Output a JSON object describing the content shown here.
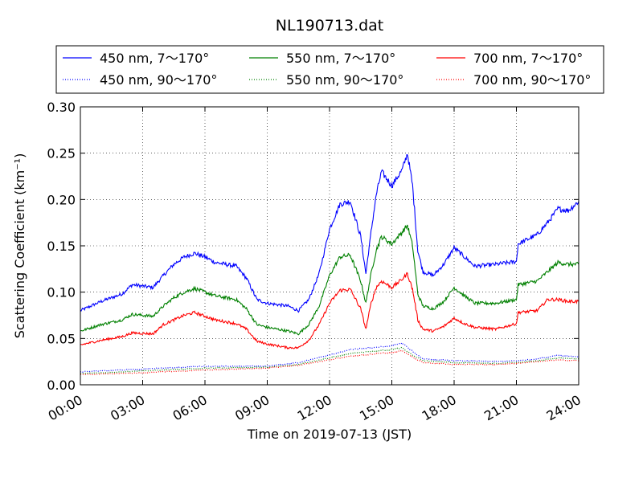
{
  "chart_data": {
    "type": "line",
    "title": "NL190713.dat",
    "xlabel": "Time on 2019-07-13 (JST)",
    "ylabel": "Scattering Coefficient (km⁻¹)",
    "xlim": [
      "00:00",
      "24:00"
    ],
    "ylim": [
      0.0,
      0.3
    ],
    "grid": true,
    "legend_position": "top",
    "x_ticks": [
      "00:00",
      "03:00",
      "06:00",
      "09:00",
      "12:00",
      "15:00",
      "18:00",
      "21:00",
      "24:00"
    ],
    "y_ticks": [
      "0.00",
      "0.05",
      "0.10",
      "0.15",
      "0.20",
      "0.25",
      "0.30"
    ],
    "series": [
      {
        "name": "450 nm, 7～170°",
        "color": "#0000ff",
        "style": "solid",
        "points": [
          [
            "00:00",
            0.08
          ],
          [
            "01:00",
            0.09
          ],
          [
            "02:00",
            0.098
          ],
          [
            "02:30",
            0.108
          ],
          [
            "03:30",
            0.105
          ],
          [
            "04:00",
            0.118
          ],
          [
            "04:30",
            0.13
          ],
          [
            "05:00",
            0.138
          ],
          [
            "05:30",
            0.142
          ],
          [
            "06:00",
            0.138
          ],
          [
            "06:30",
            0.132
          ],
          [
            "07:30",
            0.128
          ],
          [
            "08:00",
            0.115
          ],
          [
            "08:30",
            0.092
          ],
          [
            "09:00",
            0.088
          ],
          [
            "10:00",
            0.085
          ],
          [
            "10:30",
            0.08
          ],
          [
            "11:00",
            0.092
          ],
          [
            "11:30",
            0.12
          ],
          [
            "12:00",
            0.168
          ],
          [
            "12:30",
            0.195
          ],
          [
            "13:00",
            0.198
          ],
          [
            "13:30",
            0.16
          ],
          [
            "13:45",
            0.12
          ],
          [
            "14:00",
            0.165
          ],
          [
            "14:15",
            0.205
          ],
          [
            "14:30",
            0.23
          ],
          [
            "15:00",
            0.215
          ],
          [
            "15:30",
            0.232
          ],
          [
            "15:45",
            0.25
          ],
          [
            "16:00",
            0.215
          ],
          [
            "16:15",
            0.145
          ],
          [
            "16:30",
            0.122
          ],
          [
            "17:00",
            0.118
          ],
          [
            "17:30",
            0.13
          ],
          [
            "18:00",
            0.148
          ],
          [
            "18:30",
            0.138
          ],
          [
            "19:00",
            0.128
          ],
          [
            "20:00",
            0.13
          ],
          [
            "21:00",
            0.133
          ],
          [
            "21:05",
            0.152
          ],
          [
            "22:00",
            0.162
          ],
          [
            "22:30",
            0.175
          ],
          [
            "23:00",
            0.19
          ],
          [
            "23:30",
            0.188
          ],
          [
            "24:00",
            0.198
          ]
        ]
      },
      {
        "name": "550 nm, 7～170°",
        "color": "#008000",
        "style": "solid",
        "points": [
          [
            "00:00",
            0.058
          ],
          [
            "01:00",
            0.065
          ],
          [
            "02:00",
            0.07
          ],
          [
            "02:30",
            0.076
          ],
          [
            "03:30",
            0.074
          ],
          [
            "04:00",
            0.085
          ],
          [
            "04:30",
            0.094
          ],
          [
            "05:00",
            0.1
          ],
          [
            "05:30",
            0.104
          ],
          [
            "06:00",
            0.1
          ],
          [
            "06:30",
            0.096
          ],
          [
            "07:30",
            0.092
          ],
          [
            "08:00",
            0.082
          ],
          [
            "08:30",
            0.065
          ],
          [
            "09:00",
            0.062
          ],
          [
            "10:00",
            0.058
          ],
          [
            "10:30",
            0.055
          ],
          [
            "11:00",
            0.065
          ],
          [
            "11:30",
            0.085
          ],
          [
            "12:00",
            0.118
          ],
          [
            "12:30",
            0.138
          ],
          [
            "13:00",
            0.14
          ],
          [
            "13:30",
            0.112
          ],
          [
            "13:45",
            0.088
          ],
          [
            "14:00",
            0.12
          ],
          [
            "14:15",
            0.145
          ],
          [
            "14:30",
            0.16
          ],
          [
            "15:00",
            0.152
          ],
          [
            "15:30",
            0.165
          ],
          [
            "15:45",
            0.172
          ],
          [
            "16:00",
            0.15
          ],
          [
            "16:15",
            0.098
          ],
          [
            "16:30",
            0.085
          ],
          [
            "17:00",
            0.082
          ],
          [
            "17:30",
            0.09
          ],
          [
            "18:00",
            0.105
          ],
          [
            "18:30",
            0.096
          ],
          [
            "19:00",
            0.088
          ],
          [
            "20:00",
            0.088
          ],
          [
            "21:00",
            0.092
          ],
          [
            "21:05",
            0.108
          ],
          [
            "22:00",
            0.112
          ],
          [
            "22:30",
            0.122
          ],
          [
            "23:00",
            0.132
          ],
          [
            "23:30",
            0.13
          ],
          [
            "24:00",
            0.13
          ]
        ]
      },
      {
        "name": "700 nm, 7～170°",
        "color": "#ff0000",
        "style": "solid",
        "points": [
          [
            "00:00",
            0.043
          ],
          [
            "01:00",
            0.048
          ],
          [
            "02:00",
            0.052
          ],
          [
            "02:30",
            0.056
          ],
          [
            "03:30",
            0.055
          ],
          [
            "04:00",
            0.065
          ],
          [
            "04:30",
            0.07
          ],
          [
            "05:00",
            0.075
          ],
          [
            "05:30",
            0.078
          ],
          [
            "06:00",
            0.074
          ],
          [
            "06:30",
            0.07
          ],
          [
            "07:30",
            0.066
          ],
          [
            "08:00",
            0.06
          ],
          [
            "08:30",
            0.047
          ],
          [
            "09:00",
            0.044
          ],
          [
            "10:00",
            0.04
          ],
          [
            "10:30",
            0.04
          ],
          [
            "11:00",
            0.048
          ],
          [
            "11:30",
            0.065
          ],
          [
            "12:00",
            0.088
          ],
          [
            "12:30",
            0.102
          ],
          [
            "13:00",
            0.103
          ],
          [
            "13:30",
            0.082
          ],
          [
            "13:45",
            0.06
          ],
          [
            "14:00",
            0.088
          ],
          [
            "14:15",
            0.105
          ],
          [
            "14:30",
            0.112
          ],
          [
            "15:00",
            0.105
          ],
          [
            "15:30",
            0.114
          ],
          [
            "15:45",
            0.12
          ],
          [
            "16:00",
            0.103
          ],
          [
            "16:15",
            0.07
          ],
          [
            "16:30",
            0.06
          ],
          [
            "17:00",
            0.058
          ],
          [
            "17:30",
            0.063
          ],
          [
            "18:00",
            0.072
          ],
          [
            "18:30",
            0.066
          ],
          [
            "19:00",
            0.062
          ],
          [
            "20:00",
            0.06
          ],
          [
            "21:00",
            0.066
          ],
          [
            "21:05",
            0.078
          ],
          [
            "22:00",
            0.08
          ],
          [
            "22:30",
            0.092
          ],
          [
            "23:00",
            0.092
          ],
          [
            "23:30",
            0.09
          ],
          [
            "24:00",
            0.09
          ]
        ]
      },
      {
        "name": "450 nm, 90～170°",
        "color": "#0000ff",
        "style": "dotted",
        "points": [
          [
            "00:00",
            0.014
          ],
          [
            "03:00",
            0.017
          ],
          [
            "06:00",
            0.02
          ],
          [
            "09:00",
            0.02
          ],
          [
            "10:30",
            0.024
          ],
          [
            "12:00",
            0.032
          ],
          [
            "13:00",
            0.038
          ],
          [
            "14:00",
            0.04
          ],
          [
            "15:00",
            0.042
          ],
          [
            "15:30",
            0.045
          ],
          [
            "16:00",
            0.036
          ],
          [
            "16:30",
            0.028
          ],
          [
            "18:00",
            0.026
          ],
          [
            "20:00",
            0.025
          ],
          [
            "21:00",
            0.026
          ],
          [
            "22:00",
            0.028
          ],
          [
            "23:00",
            0.032
          ],
          [
            "24:00",
            0.03
          ]
        ]
      },
      {
        "name": "550 nm, 90～170°",
        "color": "#008000",
        "style": "dotted",
        "points": [
          [
            "00:00",
            0.012
          ],
          [
            "03:00",
            0.015
          ],
          [
            "06:00",
            0.018
          ],
          [
            "09:00",
            0.019
          ],
          [
            "10:30",
            0.022
          ],
          [
            "12:00",
            0.029
          ],
          [
            "13:00",
            0.034
          ],
          [
            "14:00",
            0.036
          ],
          [
            "15:00",
            0.038
          ],
          [
            "15:30",
            0.04
          ],
          [
            "16:00",
            0.032
          ],
          [
            "16:30",
            0.026
          ],
          [
            "18:00",
            0.024
          ],
          [
            "20:00",
            0.023
          ],
          [
            "21:00",
            0.024
          ],
          [
            "22:00",
            0.026
          ],
          [
            "23:00",
            0.029
          ],
          [
            "24:00",
            0.028
          ]
        ]
      },
      {
        "name": "700 nm, 90～170°",
        "color": "#ff0000",
        "style": "dotted",
        "points": [
          [
            "00:00",
            0.011
          ],
          [
            "03:00",
            0.013
          ],
          [
            "06:00",
            0.016
          ],
          [
            "09:00",
            0.018
          ],
          [
            "10:30",
            0.021
          ],
          [
            "12:00",
            0.027
          ],
          [
            "13:00",
            0.031
          ],
          [
            "14:00",
            0.033
          ],
          [
            "15:00",
            0.035
          ],
          [
            "15:30",
            0.037
          ],
          [
            "16:00",
            0.03
          ],
          [
            "16:30",
            0.024
          ],
          [
            "18:00",
            0.022
          ],
          [
            "20:00",
            0.022
          ],
          [
            "21:00",
            0.023
          ],
          [
            "22:00",
            0.025
          ],
          [
            "23:00",
            0.027
          ],
          [
            "24:00",
            0.026
          ]
        ]
      }
    ]
  }
}
